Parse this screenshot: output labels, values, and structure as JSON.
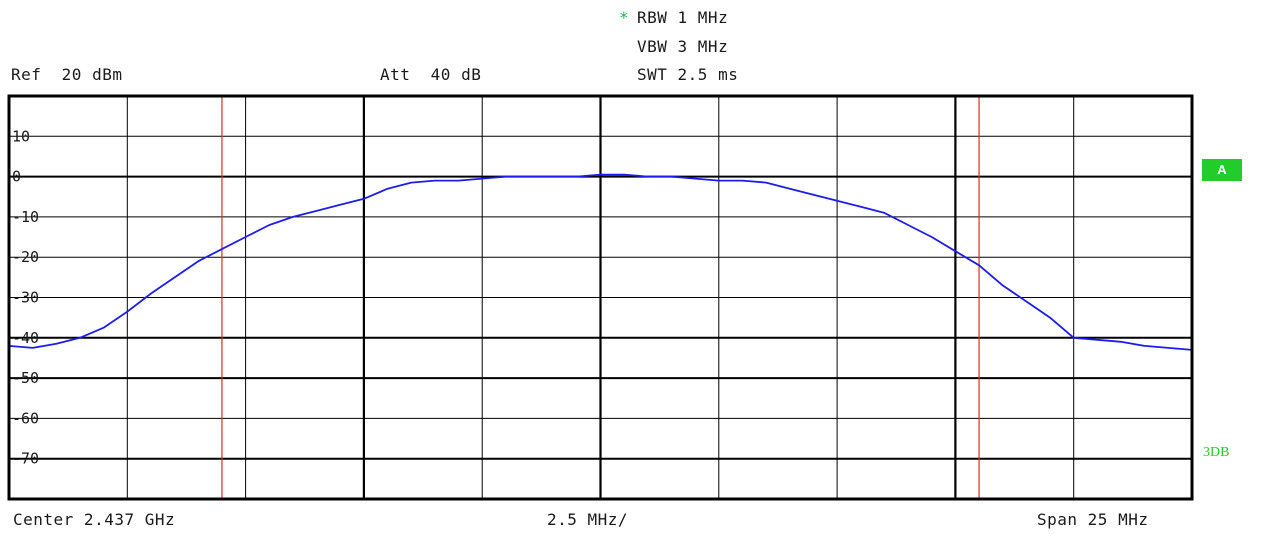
{
  "header": {
    "rbw": "RBW 1 MHz",
    "vbw": "VBW 3 MHz",
    "swt": "SWT 2.5 ms",
    "ref": "Ref  20 dBm",
    "att": "Att  40 dB",
    "rbw_marker": "*"
  },
  "footer": {
    "center": "Center 2.437 GHz",
    "div": "2.5 MHz/",
    "span": "Span 25 MHz"
  },
  "trace_badge": "A",
  "side_label": "3DB",
  "colors": {
    "trace": "#1c1cf0",
    "marker_line": "#e8261e",
    "grid": "#000000",
    "badge": "#22cc2a"
  },
  "chart_data": {
    "type": "line",
    "title": "",
    "xlabel": "",
    "ylabel": "",
    "x_unit": "MHz offset from center",
    "xlim": [
      -12.5,
      12.5
    ],
    "ylim": [
      -80,
      20
    ],
    "y_ticks": [
      10,
      0,
      -10,
      -20,
      -30,
      -40,
      -50,
      -60,
      -70
    ],
    "y_tick_labels": [
      "10",
      "0",
      "-10",
      "-20",
      "-30",
      "-40",
      "-50",
      "-60",
      "-70"
    ],
    "grid": true,
    "vertical_markers": [
      -8.0,
      8.0
    ],
    "series": [
      {
        "x": [
          -12.5,
          -12.0,
          -11.5,
          -11.0,
          -10.5,
          -10.0,
          -9.5,
          -9.0,
          -8.5,
          -8.0,
          -7.5,
          -7.0,
          -6.5,
          -6.0,
          -5.5,
          -5.0,
          -4.5,
          -4.0,
          -3.5,
          -3.0,
          -2.5,
          -2.0,
          -1.5,
          -1.0,
          -0.5,
          0.0,
          0.5,
          1.0,
          1.5,
          2.0,
          2.5,
          3.0,
          3.5,
          4.0,
          4.5,
          5.0,
          5.5,
          6.0,
          6.5,
          7.0,
          7.5,
          8.0,
          8.5,
          9.0,
          9.5,
          10.0,
          10.5,
          11.0,
          11.5,
          12.0,
          12.5
        ],
        "y": [
          -42,
          -42.5,
          -41.5,
          -40,
          -37.5,
          -33.5,
          -29,
          -25,
          -21,
          -18,
          -15,
          -12,
          -10,
          -8.5,
          -7,
          -5.5,
          -3,
          -1.5,
          -1,
          -1,
          -0.5,
          0,
          0,
          0,
          0,
          0.5,
          0.5,
          0,
          0,
          -0.5,
          -1,
          -1,
          -1.5,
          -3,
          -4.5,
          -6,
          -7.5,
          -9,
          -12,
          -15,
          -18.5,
          -22,
          -27,
          -31,
          -35,
          -40,
          -40.5,
          -41,
          -42,
          -42.5,
          -43
        ]
      }
    ]
  }
}
